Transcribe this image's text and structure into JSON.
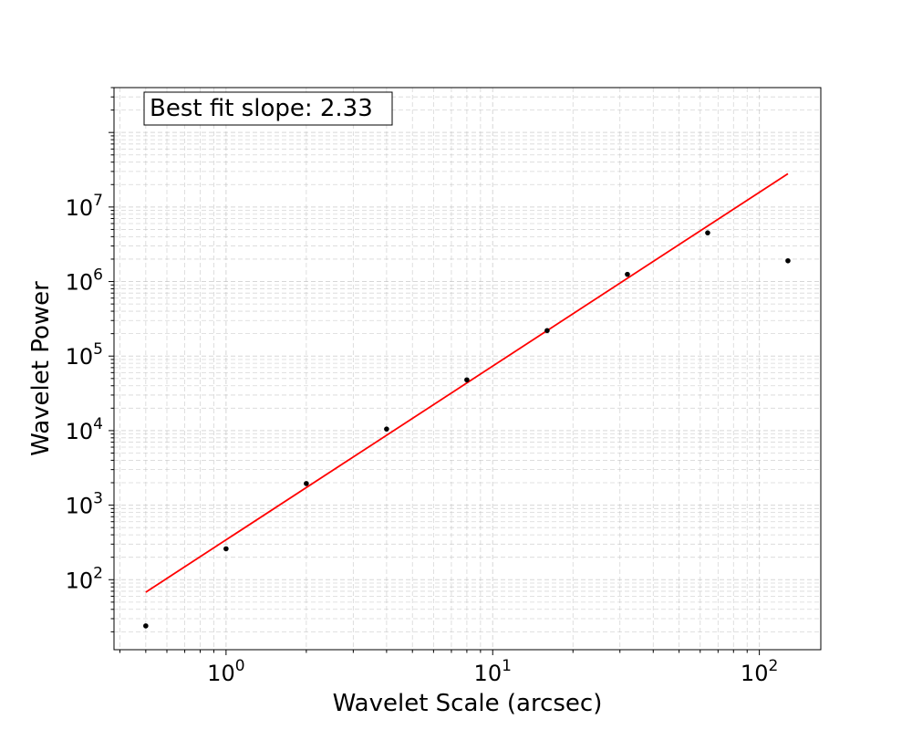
{
  "chart_data": {
    "type": "scatter",
    "title": "",
    "xlabel": "Wavelet Scale (arcsec)",
    "ylabel": "Wavelet Power",
    "xscale": "log",
    "yscale": "log",
    "xlim": [
      0.38,
      170
    ],
    "ylim": [
      11.5,
      400000000
    ],
    "grid": true,
    "grid_which": "both",
    "x_ticks": [
      {
        "base": "10",
        "exp": "0",
        "value": 1
      },
      {
        "base": "10",
        "exp": "1",
        "value": 10
      },
      {
        "base": "10",
        "exp": "2",
        "value": 100
      }
    ],
    "y_ticks": [
      {
        "base": "10",
        "exp": "2",
        "value": 100
      },
      {
        "base": "10",
        "exp": "3",
        "value": 1000
      },
      {
        "base": "10",
        "exp": "4",
        "value": 10000
      },
      {
        "base": "10",
        "exp": "5",
        "value": 100000
      },
      {
        "base": "10",
        "exp": "6",
        "value": 1000000
      },
      {
        "base": "10",
        "exp": "7",
        "value": 10000000
      }
    ],
    "points": {
      "x": [
        0.5,
        1,
        2,
        4,
        8,
        16,
        32,
        64,
        128
      ],
      "y": [
        24,
        260,
        1950,
        10500,
        48000,
        220000,
        1250000,
        4500000,
        1900000
      ],
      "color": "#000000"
    },
    "fit_line": {
      "x": [
        0.5,
        128
      ],
      "y": [
        68,
        28000000
      ],
      "color": "#ff0000"
    },
    "annotation": {
      "text": "Best fit slope: 2.33",
      "placement": "top-left"
    }
  }
}
